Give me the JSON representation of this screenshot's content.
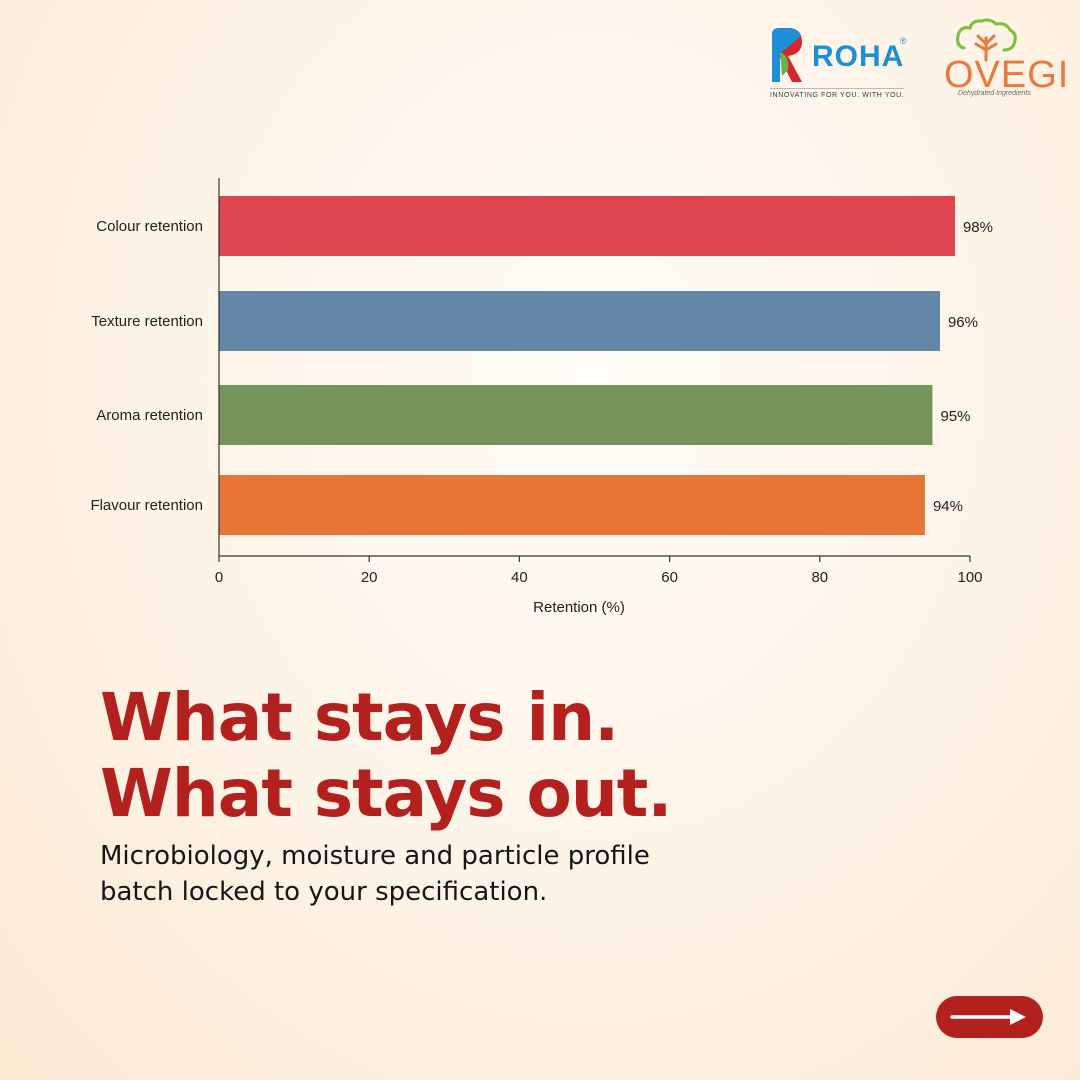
{
  "brand": {
    "roha_name": "ROHA",
    "roha_reg": "®",
    "roha_tagline": "INNOVATING FOR YOU. WITH YOU.",
    "ovegi_name": "OVEGI",
    "ovegi_sub": "Dehydrated Ingredients",
    "colors": {
      "roha_blue": "#1d8fd6",
      "roha_red": "#d7262b",
      "ovegi_orange": "#e8793a",
      "ovegi_green": "#7bbf3a"
    }
  },
  "headline": {
    "line1": "What stays in.",
    "line2": "What stays out."
  },
  "subtext": {
    "line1": "Microbiology, moisture and particle profile",
    "line2": "batch locked to your specification."
  },
  "next_button": {
    "icon": "arrow-right-icon",
    "color": "#b3211f"
  },
  "chart_data": {
    "type": "bar",
    "orientation": "horizontal",
    "categories": [
      "Colour retention",
      "Texture retention",
      "Aroma retention",
      "Flavour retention"
    ],
    "values": [
      98,
      96,
      95,
      94
    ],
    "value_labels": [
      "98%",
      "96%",
      "95%",
      "94%"
    ],
    "colors": [
      "#de4550",
      "#6287a7",
      "#769459",
      "#e77636"
    ],
    "xlabel": "Retention (%)",
    "ylabel": "",
    "xlim": [
      0,
      100
    ],
    "xticks": [
      "0",
      "20",
      "40",
      "60",
      "80",
      "100"
    ],
    "grid": false,
    "legend": "none"
  }
}
